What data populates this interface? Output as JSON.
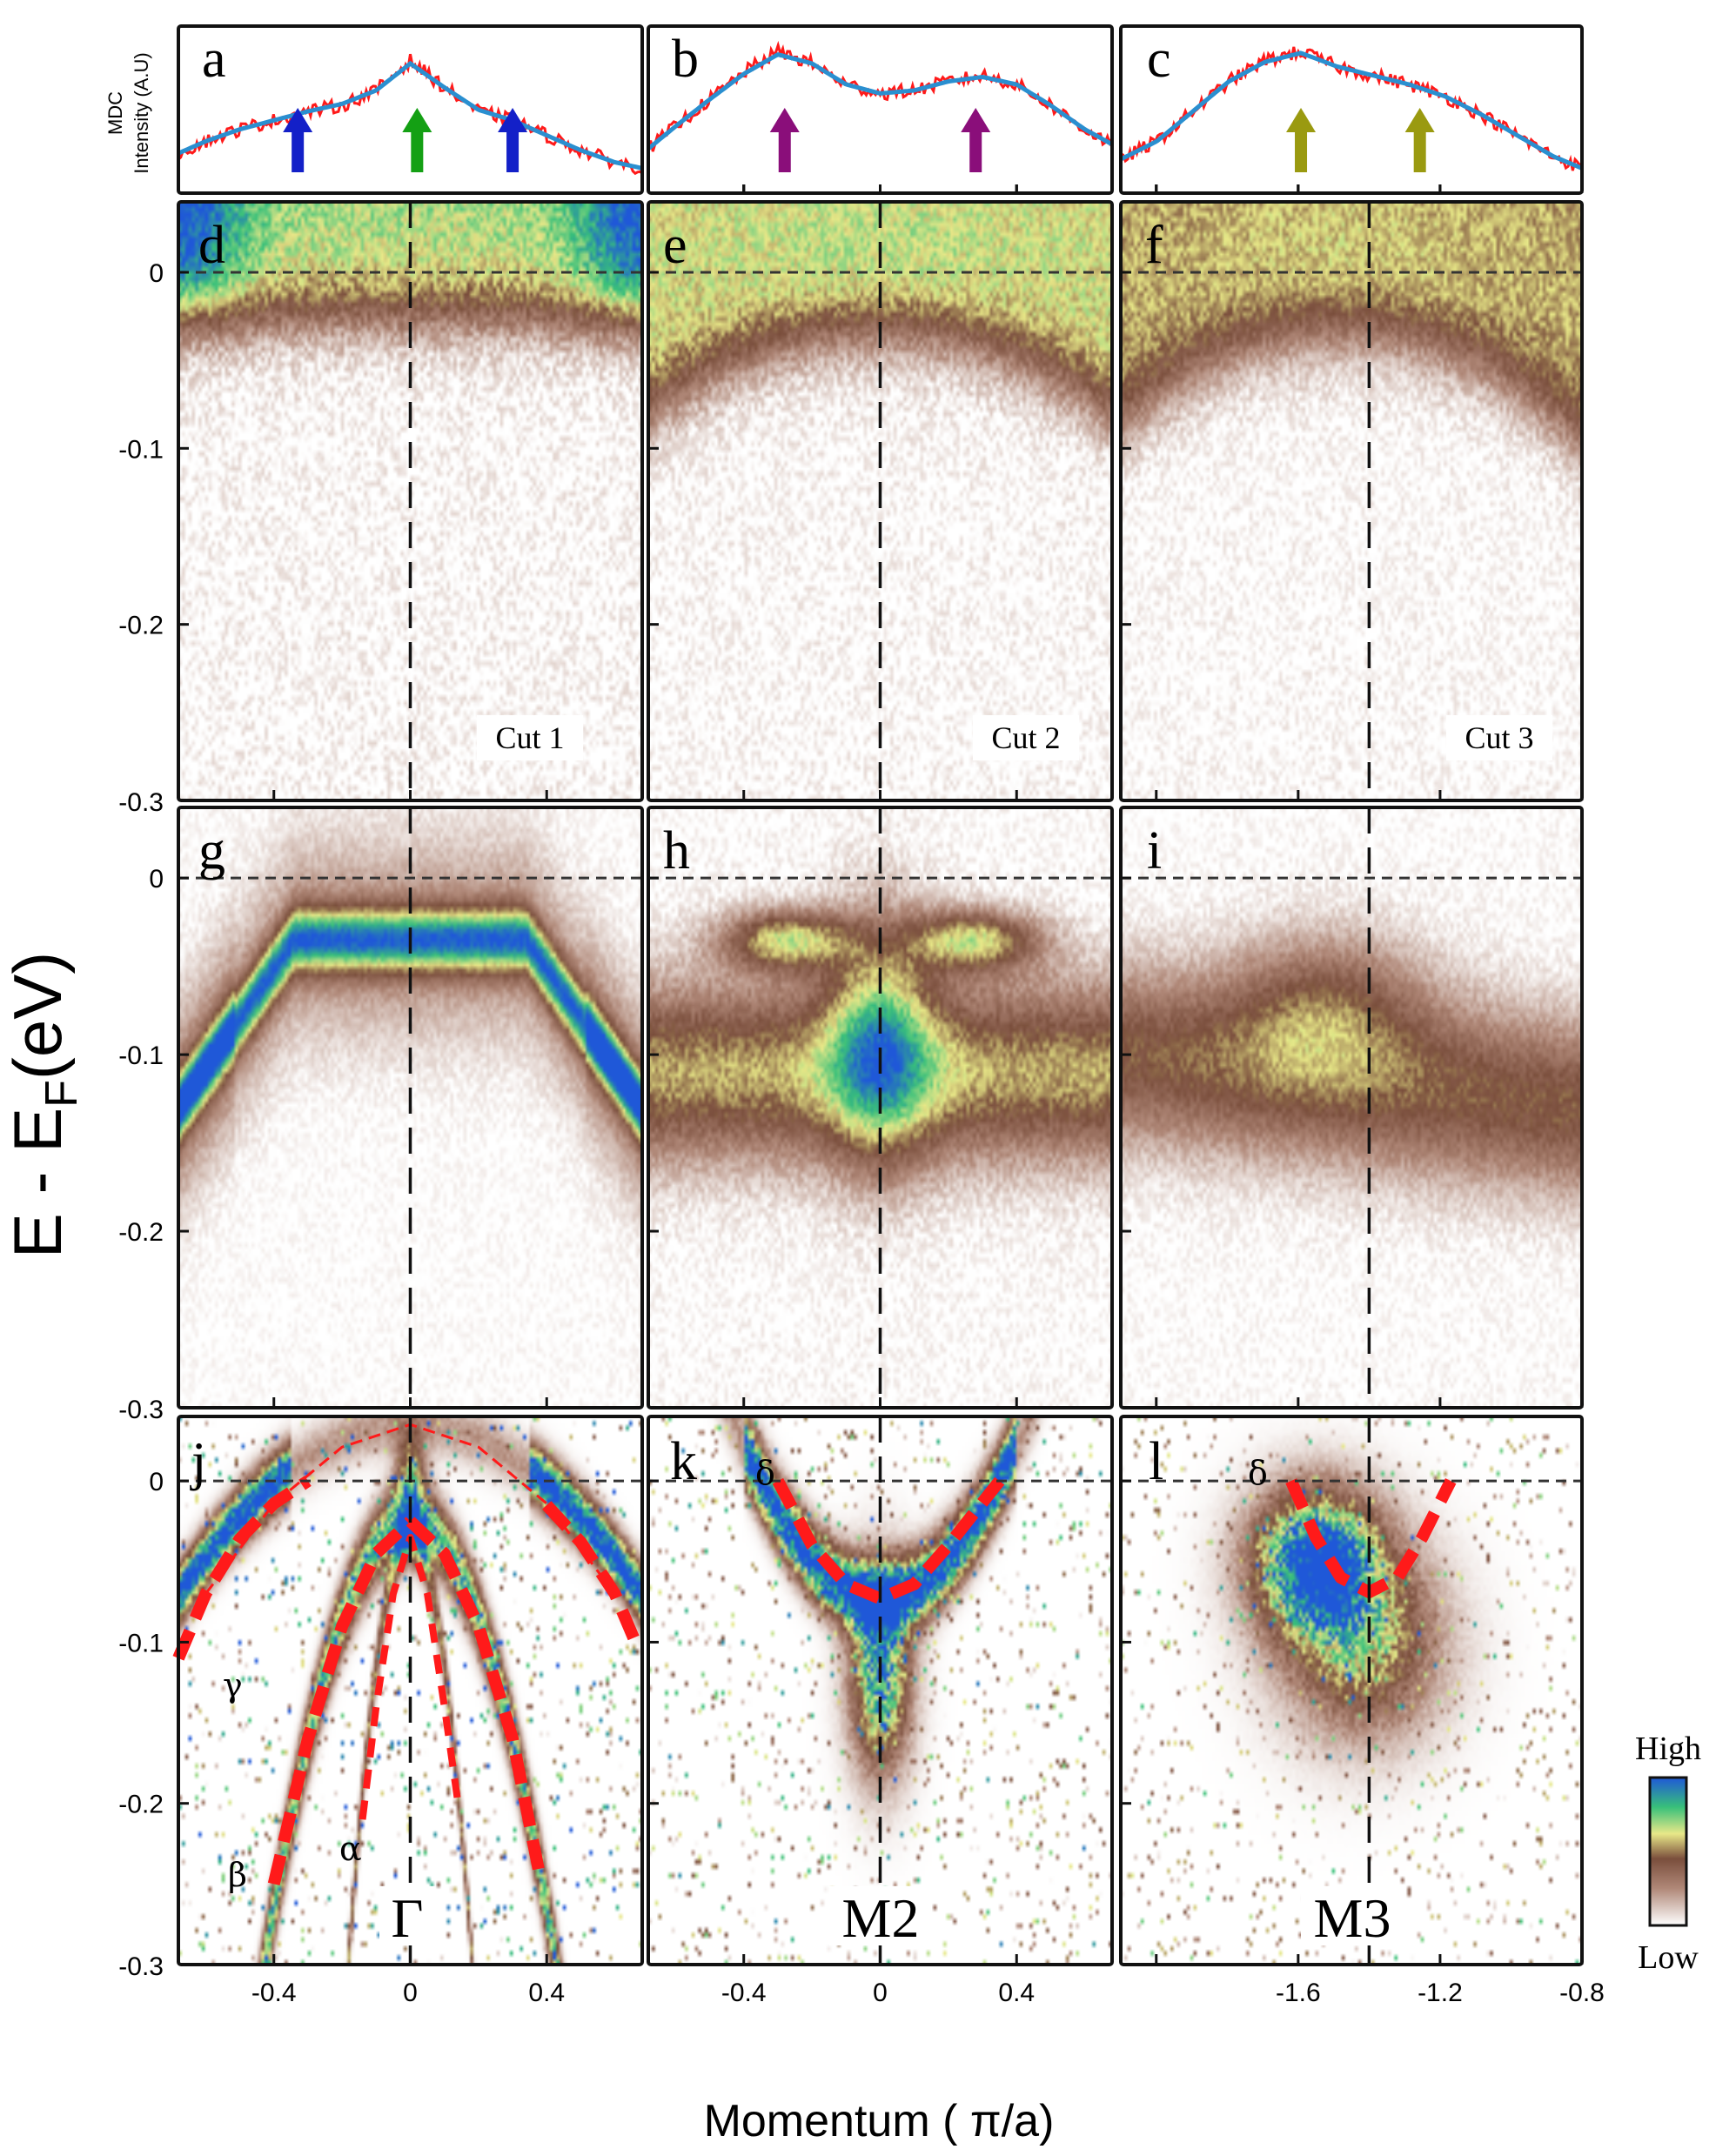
{
  "chart_data": [
    {
      "type": "line",
      "panel": "a",
      "ylabel": "MDC\nIntensity (A.U)",
      "x": [
        -0.68,
        -0.6,
        -0.5,
        -0.4,
        -0.3,
        -0.2,
        -0.1,
        0.0,
        0.1,
        0.2,
        0.3,
        0.4,
        0.5,
        0.6,
        0.68
      ],
      "series": [
        {
          "name": "",
          "color": "#ff1a1a",
          "values": [
            0.22,
            0.3,
            0.38,
            0.44,
            0.5,
            0.54,
            0.64,
            0.84,
            0.66,
            0.5,
            0.44,
            0.34,
            0.24,
            0.16,
            0.12
          ]
        },
        {
          "name": "",
          "color": "#2a8fd0",
          "values": [
            0.22,
            0.3,
            0.38,
            0.44,
            0.5,
            0.55,
            0.64,
            0.82,
            0.66,
            0.51,
            0.44,
            0.34,
            0.24,
            0.16,
            0.12
          ]
        }
      ],
      "arrows": [
        {
          "k": -0.33,
          "color": "#1320c8"
        },
        {
          "k": 0.02,
          "color": "#14a014"
        },
        {
          "k": 0.3,
          "color": "#1320c8"
        }
      ]
    },
    {
      "type": "line",
      "panel": "b",
      "x": [
        -0.68,
        -0.6,
        -0.5,
        -0.4,
        -0.3,
        -0.2,
        -0.1,
        0.0,
        0.1,
        0.2,
        0.3,
        0.4,
        0.5,
        0.6,
        0.68
      ],
      "series": [
        {
          "name": "",
          "color": "#ff1a1a",
          "values": [
            0.25,
            0.4,
            0.58,
            0.76,
            0.9,
            0.82,
            0.68,
            0.62,
            0.64,
            0.7,
            0.74,
            0.68,
            0.54,
            0.38,
            0.28
          ]
        },
        {
          "name": "",
          "color": "#2a8fd0",
          "values": [
            0.25,
            0.4,
            0.58,
            0.75,
            0.88,
            0.82,
            0.68,
            0.62,
            0.64,
            0.7,
            0.73,
            0.68,
            0.54,
            0.38,
            0.28
          ]
        }
      ],
      "arrows": [
        {
          "k": -0.28,
          "color": "#8a0e7a"
        },
        {
          "k": 0.28,
          "color": "#8a0e7a"
        }
      ]
    },
    {
      "type": "line",
      "panel": "c",
      "x": [
        -2.1,
        -2.0,
        -1.9,
        -1.8,
        -1.7,
        -1.6,
        -1.5,
        -1.4,
        -1.3,
        -1.2,
        -1.1,
        -1.0,
        -0.9,
        -0.82
      ],
      "series": [
        {
          "name": "",
          "color": "#ff1a1a",
          "values": [
            0.18,
            0.3,
            0.5,
            0.7,
            0.84,
            0.9,
            0.8,
            0.74,
            0.68,
            0.6,
            0.48,
            0.34,
            0.2,
            0.12
          ]
        },
        {
          "name": "",
          "color": "#2a8fd0",
          "values": [
            0.18,
            0.3,
            0.5,
            0.7,
            0.83,
            0.89,
            0.8,
            0.74,
            0.68,
            0.6,
            0.48,
            0.34,
            0.2,
            0.12
          ]
        }
      ],
      "arrows": [
        {
          "k": -1.6,
          "color": "#9a9a10"
        },
        {
          "k": -1.27,
          "color": "#9a9a10"
        }
      ]
    },
    {
      "type": "heatmap",
      "panel": "d",
      "label": "Cut 1",
      "xlim": [
        -0.68,
        0.68
      ],
      "ylim": [
        -0.3,
        0.04
      ]
    },
    {
      "type": "heatmap",
      "panel": "e",
      "label": "Cut 2",
      "xlim": [
        -0.68,
        0.68
      ],
      "ylim": [
        -0.3,
        0.04
      ]
    },
    {
      "type": "heatmap",
      "panel": "f",
      "label": "Cut 3",
      "xlim": [
        -2.1,
        -0.8
      ],
      "ylim": [
        -0.3,
        0.04
      ]
    },
    {
      "type": "heatmap",
      "panel": "g",
      "xlim": [
        -0.68,
        0.68
      ],
      "ylim": [
        -0.3,
        0.04
      ]
    },
    {
      "type": "heatmap",
      "panel": "h",
      "xlim": [
        -0.68,
        0.68
      ],
      "ylim": [
        -0.3,
        0.04
      ]
    },
    {
      "type": "heatmap",
      "panel": "i",
      "xlim": [
        -2.1,
        -0.8
      ],
      "ylim": [
        -0.3,
        0.04
      ]
    },
    {
      "type": "heatmap",
      "panel": "j",
      "point_label": "Γ",
      "xlim": [
        -0.68,
        0.68
      ],
      "ylim": [
        -0.3,
        0.04
      ],
      "bands": [
        {
          "name": "γ",
          "width": "thick",
          "points": [
            [
              -0.68,
              -0.11
            ],
            [
              -0.6,
              -0.07
            ],
            [
              -0.5,
              -0.036
            ],
            [
              -0.4,
              -0.014
            ],
            [
              -0.3,
              0.0
            ]
          ]
        },
        {
          "name": "γ",
          "width": "thick",
          "points": [
            [
              0.4,
              -0.015
            ],
            [
              0.5,
              -0.038
            ],
            [
              0.6,
              -0.07
            ],
            [
              0.66,
              -0.1
            ]
          ]
        },
        {
          "name": "γ-outer",
          "width": "thin",
          "points": [
            [
              -0.6,
              -0.07
            ],
            [
              -0.4,
              -0.014
            ],
            [
              -0.2,
              0.021
            ],
            [
              0.0,
              0.035
            ],
            [
              0.2,
              0.021
            ],
            [
              0.4,
              -0.014
            ],
            [
              0.6,
              -0.07
            ]
          ]
        },
        {
          "name": "β",
          "width": "thick",
          "points": [
            [
              -0.4,
              -0.25
            ],
            [
              -0.3,
              -0.16
            ],
            [
              -0.2,
              -0.09
            ],
            [
              -0.1,
              -0.045
            ],
            [
              0.0,
              -0.025
            ]
          ]
        },
        {
          "name": "β",
          "width": "thick",
          "points": [
            [
              0.0,
              -0.025
            ],
            [
              0.1,
              -0.045
            ],
            [
              0.2,
              -0.09
            ],
            [
              0.3,
              -0.16
            ],
            [
              0.38,
              -0.245
            ]
          ]
        },
        {
          "name": "α",
          "width": "medium",
          "points": [
            [
              -0.14,
              -0.21
            ],
            [
              -0.1,
              -0.14
            ],
            [
              -0.05,
              -0.07
            ],
            [
              0.0,
              -0.035
            ],
            [
              0.05,
              -0.07
            ],
            [
              0.1,
              -0.14
            ],
            [
              0.14,
              -0.2
            ]
          ]
        }
      ]
    },
    {
      "type": "heatmap",
      "panel": "k",
      "point_label": "M2",
      "xlim": [
        -0.68,
        0.68
      ],
      "ylim": [
        -0.3,
        0.04
      ],
      "bands": [
        {
          "name": "δ",
          "width": "thick",
          "points": [
            [
              -0.3,
              0.0
            ],
            [
              -0.2,
              -0.04
            ],
            [
              -0.1,
              -0.064
            ],
            [
              0.0,
              -0.073
            ],
            [
              0.1,
              -0.064
            ],
            [
              0.2,
              -0.04
            ],
            [
              0.35,
              0.0
            ]
          ]
        }
      ]
    },
    {
      "type": "heatmap",
      "panel": "l",
      "point_label": "M3",
      "xlim": [
        -2.1,
        -0.8
      ],
      "ylim": [
        -0.3,
        0.04
      ],
      "bands": [
        {
          "name": "δ",
          "width": "thick",
          "points": [
            [
              -1.62,
              0.0
            ],
            [
              -1.55,
              -0.035
            ],
            [
              -1.48,
              -0.06
            ],
            [
              -1.4,
              -0.069
            ],
            [
              -1.32,
              -0.06
            ],
            [
              -1.25,
              -0.035
            ],
            [
              -1.17,
              0.0
            ]
          ]
        }
      ]
    }
  ],
  "axes": {
    "ylabel": "E - EF(eV)",
    "ylabel_main": "E - E",
    "ylabel_sub": "F",
    "ylabel_tail": "(eV)",
    "xlabel": "Momentum ( π/a)",
    "yticks": [
      "0",
      "-0.1",
      "-0.2",
      "-0.3"
    ],
    "xticks_center": [
      "-0.4",
      "0",
      "0.4"
    ],
    "xticks_m2": [
      "-0.4",
      "0",
      "0.4"
    ],
    "xticks_m3": [
      "-1.6",
      "-1.2",
      "-0.8"
    ]
  },
  "panels": {
    "letters": [
      "a",
      "b",
      "c",
      "d",
      "e",
      "f",
      "g",
      "h",
      "i",
      "j",
      "k",
      "l"
    ],
    "cut_labels": [
      "Cut 1",
      "Cut 2",
      "Cut 3"
    ],
    "band_labels": {
      "gamma": "γ",
      "beta": "β",
      "alpha": "α",
      "delta_k": "δ",
      "delta_l": "δ"
    },
    "points": [
      "Γ",
      "M2",
      "M3"
    ]
  },
  "colorbar": {
    "high": "High",
    "low": "Low",
    "colors": [
      "#ffffff",
      "#b08878",
      "#7a4e3c",
      "#e8e888",
      "#38c07a",
      "#1f58d8"
    ]
  }
}
